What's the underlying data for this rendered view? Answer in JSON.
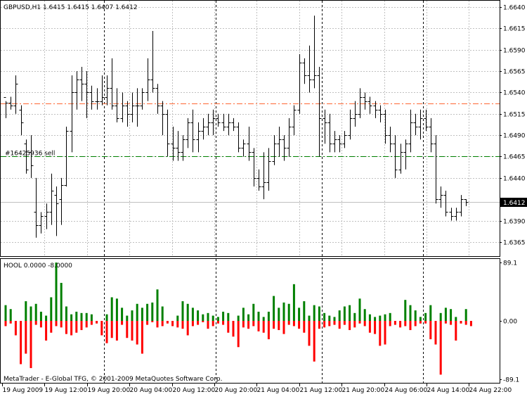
{
  "chart_data": [
    {
      "type": "ohlc-bar",
      "title": "GBPUSD,H1  1.6415 1.6415 1.6407 1.6412",
      "symbol": "GBPUSD",
      "timeframe": "H1",
      "ohlc_header": {
        "open": 1.6415,
        "high": 1.6415,
        "low": 1.6407,
        "close": 1.6412
      },
      "current_price": 1.6412,
      "current_price_label": "1.6412",
      "y_ticks": [
        1.664,
        1.6615,
        1.659,
        1.6565,
        1.654,
        1.6515,
        1.649,
        1.6465,
        1.644,
        1.639,
        1.6365
      ],
      "y_tick_labels": [
        "1.6640",
        "1.6615",
        "1.6590",
        "1.6565",
        "1.6540",
        "1.6515",
        "1.6490",
        "1.6465",
        "1.6440",
        "1.6390",
        "1.6365"
      ],
      "ylim": [
        1.6355,
        1.6645
      ],
      "grid": true,
      "horizontal_lines": [
        {
          "price": 1.6527,
          "style": "dash-dot",
          "color": "#ff6633"
        },
        {
          "price": 1.6465,
          "style": "dash-dot",
          "color": "#008000",
          "label": "#16425936 sell"
        }
      ],
      "bars": [
        [
          1.6535,
          1.653,
          1.651,
          1.6528
        ],
        [
          1.6528,
          1.6535,
          1.652,
          1.6525
        ],
        [
          1.6525,
          1.656,
          1.6515,
          1.655
        ],
        [
          1.652,
          1.6525,
          1.649,
          1.6505
        ],
        [
          1.648,
          1.6485,
          1.6445,
          1.645
        ],
        [
          1.647,
          1.649,
          1.644,
          1.6455
        ],
        [
          1.64,
          1.644,
          1.637,
          1.6385
        ],
        [
          1.6385,
          1.64,
          1.6375,
          1.6395
        ],
        [
          1.6395,
          1.641,
          1.638,
          1.64
        ],
        [
          1.64,
          1.6445,
          1.6385,
          1.6425
        ],
        [
          1.642,
          1.643,
          1.6372,
          1.641
        ],
        [
          1.6415,
          1.644,
          1.6385,
          1.6432
        ],
        [
          1.6432,
          1.65,
          1.643,
          1.6495
        ],
        [
          1.6495,
          1.656,
          1.647,
          1.654
        ],
        [
          1.654,
          1.6565,
          1.652,
          1.6555
        ],
        [
          1.6555,
          1.657,
          1.653,
          1.655
        ],
        [
          1.655,
          1.6565,
          1.651,
          1.654
        ],
        [
          1.654,
          1.6548,
          1.652,
          1.653
        ],
        [
          1.653,
          1.6545,
          1.652,
          1.653
        ],
        [
          1.653,
          1.656,
          1.6525,
          1.6535
        ],
        [
          1.6535,
          1.656,
          1.6525,
          1.6545
        ],
        [
          1.6545,
          1.658,
          1.652,
          1.6525
        ],
        [
          1.6525,
          1.6545,
          1.6505,
          1.651
        ],
        [
          1.651,
          1.654,
          1.6505,
          1.6525
        ],
        [
          1.6525,
          1.653,
          1.65,
          1.6515
        ],
        [
          1.6515,
          1.654,
          1.6505,
          1.6525
        ],
        [
          1.6525,
          1.6545,
          1.65,
          1.6525
        ],
        [
          1.6525,
          1.6545,
          1.652,
          1.654
        ],
        [
          1.654,
          1.658,
          1.653,
          1.6555
        ],
        [
          1.6555,
          1.6612,
          1.654,
          1.6545
        ],
        [
          1.6545,
          1.655,
          1.6515,
          1.6525
        ],
        [
          1.6525,
          1.653,
          1.649,
          1.6515
        ],
        [
          1.6515,
          1.652,
          1.6465,
          1.648
        ],
        [
          1.648,
          1.65,
          1.646,
          1.6475
        ],
        [
          1.6475,
          1.6495,
          1.646,
          1.647
        ],
        [
          1.647,
          1.649,
          1.646,
          1.6485
        ],
        [
          1.6485,
          1.651,
          1.6475,
          1.6505
        ],
        [
          1.6505,
          1.652,
          1.647,
          1.6485
        ],
        [
          1.6485,
          1.6505,
          1.647,
          1.6495
        ],
        [
          1.6495,
          1.651,
          1.6485,
          1.65
        ],
        [
          1.65,
          1.6515,
          1.649,
          1.6505
        ],
        [
          1.6505,
          1.652,
          1.649,
          1.651
        ],
        [
          1.651,
          1.6515,
          1.65,
          1.6505
        ],
        [
          1.6505,
          1.6515,
          1.6495,
          1.65
        ],
        [
          1.65,
          1.6515,
          1.649,
          1.6505
        ],
        [
          1.6505,
          1.651,
          1.6495,
          1.65
        ],
        [
          1.65,
          1.6505,
          1.647,
          1.6475
        ],
        [
          1.6475,
          1.6485,
          1.6465,
          1.648
        ],
        [
          1.648,
          1.65,
          1.646,
          1.647
        ],
        [
          1.647,
          1.6475,
          1.643,
          1.644
        ],
        [
          1.644,
          1.645,
          1.6425,
          1.643
        ],
        [
          1.643,
          1.647,
          1.6415,
          1.6435
        ],
        [
          1.6435,
          1.6475,
          1.6425,
          1.646
        ],
        [
          1.646,
          1.649,
          1.6455,
          1.648
        ],
        [
          1.648,
          1.65,
          1.6465,
          1.6485
        ],
        [
          1.6485,
          1.649,
          1.646,
          1.6475
        ],
        [
          1.6475,
          1.651,
          1.6465,
          1.65
        ],
        [
          1.65,
          1.6525,
          1.649,
          1.652
        ],
        [
          1.652,
          1.6585,
          1.6515,
          1.6575
        ],
        [
          1.6575,
          1.658,
          1.655,
          1.656
        ],
        [
          1.656,
          1.6595,
          1.654,
          1.6555
        ],
        [
          1.6555,
          1.663,
          1.6545,
          1.656
        ],
        [
          1.656,
          1.657,
          1.6465,
          1.651
        ],
        [
          1.651,
          1.652,
          1.648,
          1.6505
        ],
        [
          1.6505,
          1.6515,
          1.647,
          1.648
        ],
        [
          1.648,
          1.6495,
          1.647,
          1.6485
        ],
        [
          1.6485,
          1.649,
          1.647,
          1.648
        ],
        [
          1.648,
          1.6495,
          1.6475,
          1.649
        ],
        [
          1.649,
          1.652,
          1.6485,
          1.651
        ],
        [
          1.651,
          1.653,
          1.65,
          1.6515
        ],
        [
          1.6515,
          1.6545,
          1.651,
          1.6535
        ],
        [
          1.6535,
          1.654,
          1.652,
          1.653
        ],
        [
          1.653,
          1.6535,
          1.6515,
          1.6525
        ],
        [
          1.6525,
          1.653,
          1.651,
          1.652
        ],
        [
          1.652,
          1.6525,
          1.6505,
          1.6515
        ],
        [
          1.6515,
          1.652,
          1.648,
          1.649
        ],
        [
          1.649,
          1.65,
          1.647,
          1.648
        ],
        [
          1.648,
          1.649,
          1.644,
          1.645
        ],
        [
          1.645,
          1.648,
          1.6445,
          1.647
        ],
        [
          1.647,
          1.6485,
          1.645,
          1.648
        ],
        [
          1.648,
          1.652,
          1.647,
          1.6505
        ],
        [
          1.6505,
          1.6515,
          1.649,
          1.65
        ],
        [
          1.65,
          1.652,
          1.6485,
          1.651
        ],
        [
          1.651,
          1.652,
          1.6495,
          1.65
        ],
        [
          1.65,
          1.651,
          1.647,
          1.648
        ],
        [
          1.648,
          1.649,
          1.641,
          1.6415
        ],
        [
          1.6415,
          1.643,
          1.6405,
          1.642
        ],
        [
          1.642,
          1.6425,
          1.6395,
          1.64
        ],
        [
          1.64,
          1.6405,
          1.639,
          1.6395
        ],
        [
          1.6395,
          1.6405,
          1.639,
          1.64
        ],
        [
          1.64,
          1.642,
          1.6395,
          1.6415
        ],
        [
          1.6415,
          1.6415,
          1.6407,
          1.6412
        ]
      ],
      "x_tick_labels": [
        "19 Aug 2009",
        "19 Aug 12:00",
        "19 Aug 20:00",
        "20 Aug 04:00",
        "20 Aug 12:00",
        "20 Aug 20:00",
        "21 Aug 04:00",
        "21 Aug 12:00",
        "21 Aug 20:00",
        "24 Aug 06:00",
        "24 Aug 14:00",
        "24 Aug 22:00"
      ],
      "colors": {
        "background": "#ffffff",
        "bars": "#000000",
        "grid": "#c0c0c0",
        "period_separator": "#000000"
      }
    },
    {
      "type": "bar",
      "title": "HOOL 0.0000 -8.0000",
      "indicator": "HOOL",
      "header_values": [
        0.0,
        -8.0
      ],
      "ylim": [
        -89.1,
        89.1
      ],
      "y_tick_labels": [
        "89.1",
        "0.00",
        "-89.1"
      ],
      "series": [
        {
          "color": "#008000",
          "values": [
            24,
            18,
            0,
            0,
            30,
            22,
            26,
            14,
            8,
            36,
            89,
            58,
            22,
            10,
            14,
            12,
            12,
            10,
            0,
            0,
            10,
            36,
            34,
            20,
            8,
            16,
            26,
            20,
            26,
            28,
            48,
            22,
            0,
            0,
            8,
            30,
            26,
            20,
            16,
            10,
            12,
            8,
            6,
            14,
            12,
            0,
            8,
            20,
            10,
            26,
            14,
            6,
            14,
            38,
            20,
            28,
            26,
            56,
            20,
            30,
            8,
            24,
            22,
            12,
            8,
            6,
            16,
            22,
            24,
            12,
            34,
            18,
            10,
            6,
            8,
            10,
            12,
            0,
            0,
            32,
            24,
            16,
            6,
            12,
            24,
            0,
            12,
            20,
            18,
            6,
            0,
            18,
            0
          ]
        },
        {
          "color": "#ff0000",
          "values": [
            -8,
            -4,
            -22,
            -66,
            -50,
            -72,
            -6,
            -10,
            -30,
            -18,
            -8,
            -10,
            -20,
            -22,
            -18,
            -14,
            -10,
            -6,
            -4,
            -22,
            -34,
            -26,
            -30,
            -6,
            -26,
            -30,
            -36,
            -50,
            -6,
            -2,
            -10,
            -8,
            -4,
            -8,
            -10,
            -12,
            -22,
            -8,
            -6,
            -2,
            -12,
            -8,
            -4,
            -6,
            -18,
            -24,
            -40,
            -10,
            -12,
            -8,
            -16,
            -18,
            -28,
            -12,
            -14,
            -20,
            -6,
            -8,
            -12,
            -18,
            -38,
            -62,
            -12,
            -10,
            -8,
            -6,
            -12,
            -6,
            -14,
            -10,
            -4,
            -8,
            -18,
            -20,
            -38,
            -36,
            -8,
            -6,
            -10,
            -8,
            -14,
            -8,
            -4,
            -4,
            -28,
            -36,
            -82,
            -4,
            -6,
            -30,
            -4,
            -6,
            -8
          ]
        }
      ],
      "colors": {
        "positive": "#008000",
        "negative": "#ff0000"
      }
    }
  ],
  "copyright": "MetaTrader - E-Global TFG, © 2001-2009 MetaQuotes Software Corp."
}
